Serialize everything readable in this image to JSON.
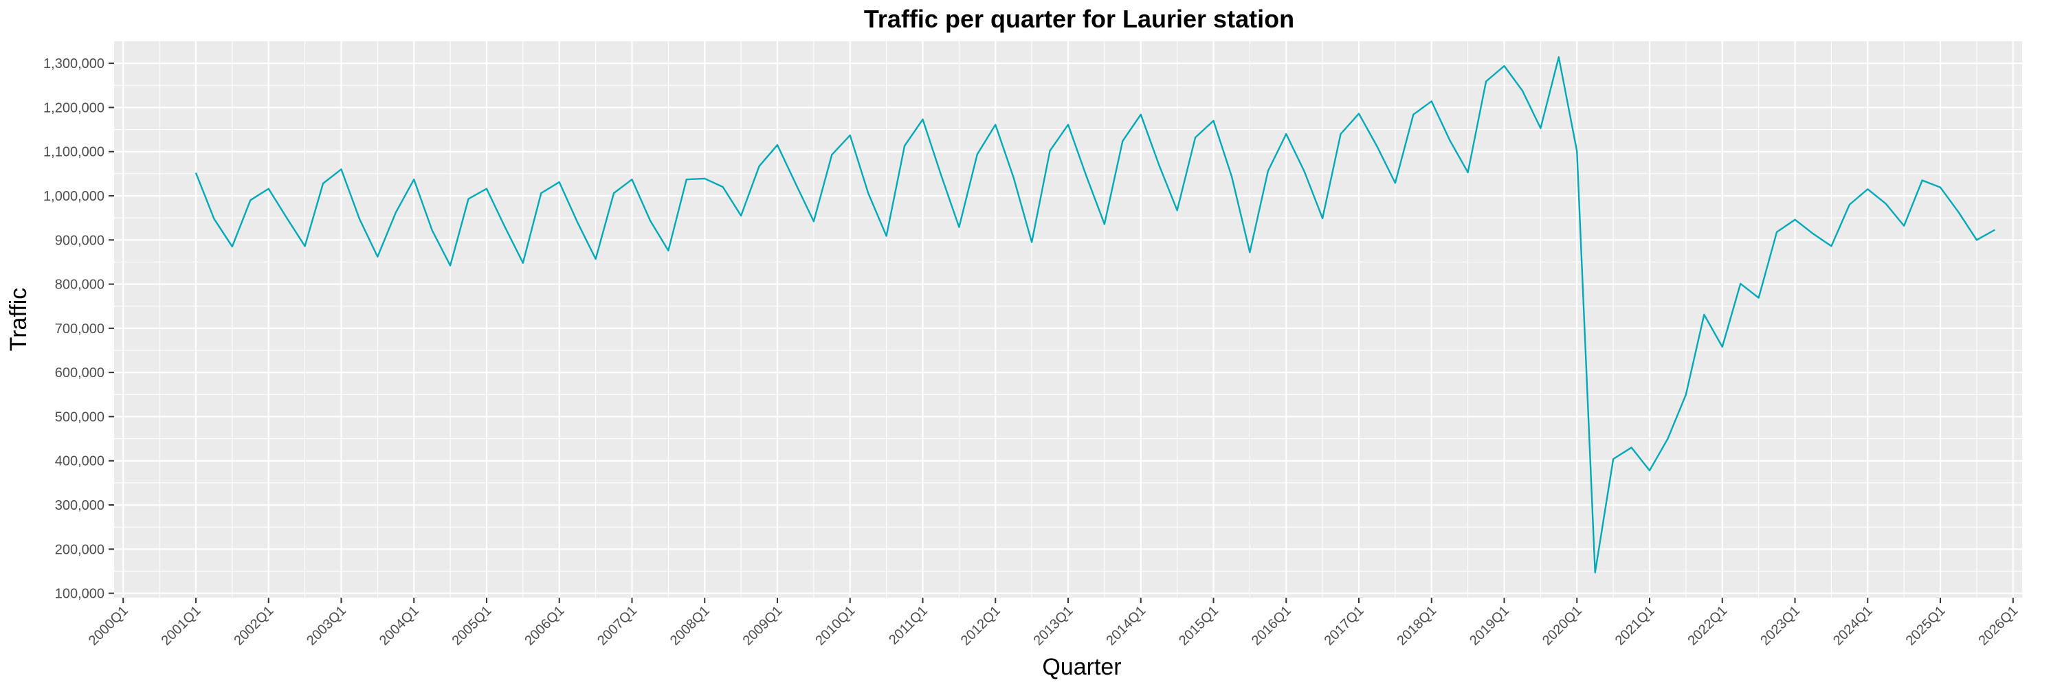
{
  "chart_data": {
    "type": "line",
    "title": "Traffic per quarter for Laurier station",
    "xlabel": "Quarter",
    "ylabel": "Traffic",
    "x_tick_labels": [
      "2000Q1",
      "2001Q1",
      "2002Q1",
      "2003Q1",
      "2004Q1",
      "2005Q1",
      "2006Q1",
      "2007Q1",
      "2008Q1",
      "2009Q1",
      "2010Q1",
      "2011Q1",
      "2012Q1",
      "2013Q1",
      "2014Q1",
      "2015Q1",
      "2016Q1",
      "2017Q1",
      "2018Q1",
      "2019Q1",
      "2020Q1",
      "2021Q1",
      "2022Q1",
      "2023Q1",
      "2024Q1",
      "2025Q1",
      "2026Q1"
    ],
    "y_ticks": [
      100000,
      200000,
      300000,
      400000,
      500000,
      600000,
      700000,
      800000,
      900000,
      1000000,
      1100000,
      1200000,
      1300000
    ],
    "y_tick_labels": [
      "100,000",
      "200,000",
      "300,000",
      "400,000",
      "500,000",
      "600,000",
      "700,000",
      "800,000",
      "900,000",
      "1,000,000",
      "1,100,000",
      "1,200,000",
      "1,300,000"
    ],
    "xlim": [
      "2000Q1",
      "2026Q1"
    ],
    "ylim": [
      90000,
      1350000
    ],
    "grid": true,
    "line_color": "#00A9B8",
    "series": [
      {
        "start_quarter": "2001Q1",
        "values": [
          1052000,
          948000,
          885000,
          990000,
          1016000,
          950000,
          886000,
          1028000,
          1060000,
          948000,
          862000,
          962000,
          1037000,
          922000,
          842000,
          993000,
          1016000,
          930000,
          848000,
          1006000,
          1031000,
          940000,
          857000,
          1006000,
          1037000,
          944000,
          876000,
          1037000,
          1039000,
          1020000,
          955000,
          1067000,
          1115000,
          1028000,
          942000,
          1093000,
          1137000,
          1006000,
          909000,
          1113000,
          1173000,
          1048000,
          929000,
          1094000,
          1161000,
          1041000,
          895000,
          1102000,
          1161000,
          1045000,
          936000,
          1124000,
          1184000,
          1070000,
          967000,
          1132000,
          1170000,
          1044000,
          872000,
          1056000,
          1140000,
          1055000,
          949000,
          1140000,
          1186000,
          1112000,
          1029000,
          1184000,
          1214000,
          1126000,
          1053000,
          1259000,
          1294000,
          1238000,
          1153000,
          1314000,
          1101000,
          147000,
          404000,
          430000,
          378000,
          450000,
          550000,
          731000,
          658000,
          801000,
          769000,
          918000,
          946000,
          914000,
          886000,
          980000,
          1015000,
          982000,
          932000,
          1035000,
          1019000,
          963000,
          900000,
          923000
        ]
      }
    ]
  }
}
